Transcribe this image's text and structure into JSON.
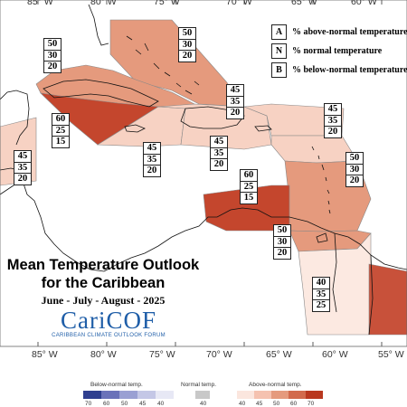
{
  "map": {
    "title_line1": "Mean Temperature Outlook",
    "title_line2": "for the Caribbean",
    "subtitle": "June - July - August - 2025",
    "longitudes": [
      "85° W",
      "80° W",
      "75° W",
      "70° W",
      "65° W",
      "60° W",
      "55° W"
    ]
  },
  "key": {
    "items": [
      {
        "letter": "A",
        "text": "% above-normal temperature"
      },
      {
        "letter": "N",
        "text": "% normal temperature"
      },
      {
        "letter": "B",
        "text": "% below-normal temperature"
      }
    ]
  },
  "logo": {
    "name": "CariCOF",
    "tagline": "CARIBBEAN CLIMATE OUTLOOK FORUM",
    "logo_color": "#1f5ea8"
  },
  "regions": [
    {
      "id": "bahamas",
      "above": "50",
      "normal": "30",
      "below": "20",
      "color": "#e59a7d"
    },
    {
      "id": "north-cuba",
      "above": "50",
      "normal": "30",
      "below": "20",
      "color": "#e59a7d"
    },
    {
      "id": "south-cuba",
      "above": "60",
      "normal": "25",
      "below": "15",
      "color": "#c4462d"
    },
    {
      "id": "belize",
      "above": "45",
      "normal": "35",
      "below": "20",
      "color": "#f7d2c3"
    },
    {
      "id": "jamaica-sea",
      "above": "45",
      "normal": "35",
      "below": "20",
      "color": "#f7d2c3"
    },
    {
      "id": "hispaniola",
      "above": "45",
      "normal": "35",
      "below": "20",
      "color": "#f7d2c3"
    },
    {
      "id": "north-hispaniola",
      "above": "45",
      "normal": "35",
      "below": "20",
      "color": "#f7d2c3"
    },
    {
      "id": "virgin-islands",
      "above": "45",
      "normal": "35",
      "below": "20",
      "color": "#f7d2c3"
    },
    {
      "id": "windward-islands",
      "above": "50",
      "normal": "30",
      "below": "20",
      "color": "#e59a7d"
    },
    {
      "id": "abc-islands",
      "above": "60",
      "normal": "25",
      "below": "15",
      "color": "#c4462d"
    },
    {
      "id": "trinidad",
      "above": "50",
      "normal": "30",
      "below": "20",
      "color": "#e59a7d"
    },
    {
      "id": "guyana",
      "above": "40",
      "normal": "35",
      "below": "25",
      "color": "#fce9e1"
    },
    {
      "id": "suriname",
      "above": "",
      "normal": "",
      "below": "",
      "color": "#c8513a"
    }
  ],
  "legend": {
    "below_label": "Below-normal temp.",
    "normal_label": "Normal temp.",
    "above_label": "Above-normal temp.",
    "below_ticks": [
      "70",
      "60",
      "50",
      "45",
      "40"
    ],
    "normal_ticks": [
      "40"
    ],
    "above_ticks": [
      "40",
      "45",
      "50",
      "60",
      "70"
    ],
    "below_colors": [
      "#2f3f8f",
      "#6a72b9",
      "#9aa0d3",
      "#c4c7e6",
      "#e7e8f5"
    ],
    "normal_color": "#c8c8c8",
    "above_colors": [
      "#fbe6de",
      "#f5c2b0",
      "#e59a7d",
      "#d26a4c",
      "#b9381f"
    ]
  }
}
